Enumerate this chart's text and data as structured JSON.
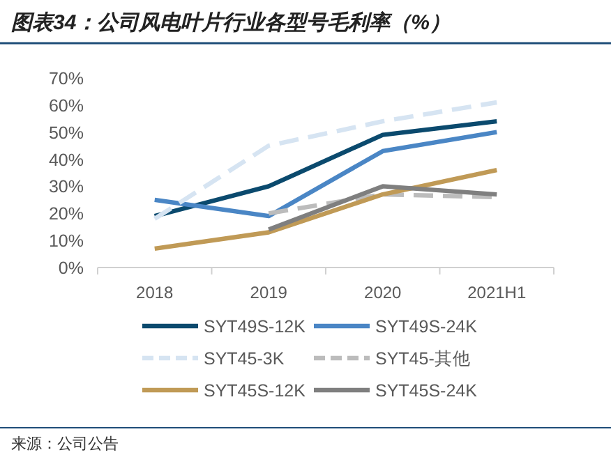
{
  "chart_data": {
    "type": "line",
    "title": "图表34：公司风电叶片行业各型号毛利率（%）",
    "categories": [
      "2018",
      "2019",
      "2020",
      "2021H1"
    ],
    "series": [
      {
        "name": "SYT49S-12K",
        "color": "#0b4a6e",
        "values": [
          19,
          30,
          49,
          54
        ]
      },
      {
        "name": "SYT49S-24K",
        "color": "#4a86c5",
        "values": [
          25,
          19,
          43,
          50
        ]
      },
      {
        "name": "SYT45-3K",
        "color": "#d6e4f2",
        "values": [
          18,
          45,
          54,
          61
        ],
        "line_style": "dashed"
      },
      {
        "name": "SYT45-其他",
        "color": "#bcbcbc",
        "values": [
          null,
          20,
          27,
          26
        ],
        "line_style": "dashed"
      },
      {
        "name": "SYT45S-12K",
        "color": "#c09a56",
        "values": [
          7,
          13,
          27,
          36
        ]
      },
      {
        "name": "SYT45S-24K",
        "color": "#7f7f7f",
        "values": [
          null,
          14,
          30,
          27
        ]
      }
    ],
    "ylim": [
      0,
      70
    ],
    "yticks": [
      {
        "value": 0,
        "label": "0%"
      },
      {
        "value": 10,
        "label": "10%"
      },
      {
        "value": 20,
        "label": "20%"
      },
      {
        "value": 30,
        "label": "30%"
      },
      {
        "value": 40,
        "label": "40%"
      },
      {
        "value": 50,
        "label": "50%"
      },
      {
        "value": 60,
        "label": "60%"
      },
      {
        "value": 70,
        "label": "70%"
      }
    ],
    "legend": "bottom",
    "grid": false,
    "annotations": [
      "来源：公司公告"
    ]
  }
}
